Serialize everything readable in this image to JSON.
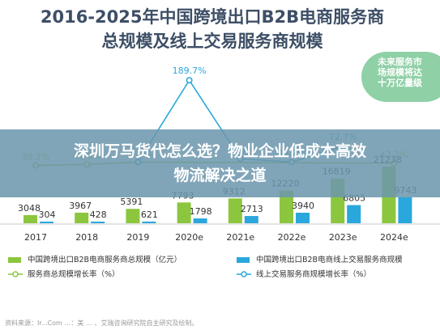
{
  "title_line1": "2016-2025年中国跨境出口B2B电商服务商",
  "title_line2": "总规模及线上交易服务商规模",
  "callout_lines": [
    "未来服务市",
    "场规模将达",
    "十万亿量级"
  ],
  "banner_lines": [
    "深圳万马货代怎么选？物业企业低成本高效",
    "物流解决之道"
  ],
  "credit": "资料来源：Ir...Com  …：美 … 、艾瑞咨询研究院自主研究及绘制。",
  "chart_data": {
    "type": "bar",
    "categories": [
      "2017",
      "2018",
      "2019",
      "2020e",
      "2021e",
      "2022e",
      "2023e",
      "2024e"
    ],
    "series": [
      {
        "name": "中国跨境出口B2B电商服务商总规模（亿元）",
        "type": "bar",
        "color": "#8cc63f",
        "values": [
          3048,
          3967,
          5391,
          7793,
          9312,
          12220,
          16819,
          21238
        ],
        "labels": [
          "3048",
          "3967",
          "5391",
          "7793",
          "9312",
          "12220",
          "16819",
          "21238"
        ]
      },
      {
        "name": "中国跨境出口B2B电商线上交易服务商规模",
        "type": "bar",
        "color": "#2aa7dc",
        "values": [
          304,
          428,
          621,
          1798,
          2713,
          3940,
          6805,
          9743
        ],
        "labels": [
          "304",
          "428",
          "621",
          "1798",
          "2713",
          "3940",
          "6805",
          "9743"
        ]
      },
      {
        "name": "服务商总规模增长率（%）",
        "type": "line",
        "color": "#8cc63f",
        "values": [
          39.2,
          41.0,
          45.1,
          null,
          null,
          null,
          null,
          43.2
        ],
        "labels": [
          "39.2%",
          "41.0%",
          "45.1%",
          "",
          "",
          "",
          "",
          "43.2%"
        ]
      },
      {
        "name": "线上交易服务商规模增长率（%）",
        "type": "line",
        "color": "#2aa7dc",
        "values": [
          null,
          null,
          45.1,
          189.7,
          50.9,
          45.2,
          72.7,
          null
        ],
        "labels": [
          "",
          "",
          "",
          "189.7%",
          "50.9%",
          "45.2%",
          "72.7%",
          ""
        ]
      }
    ],
    "legend": [
      "中国跨境出口B2B电商服务商总规模（亿元）",
      "中国跨境出口B2B电商线上交易服务商规模",
      "服务商总规模增长率（%）",
      "线上交易服务商规模增长率（%）"
    ],
    "legend_position": "bottom"
  }
}
